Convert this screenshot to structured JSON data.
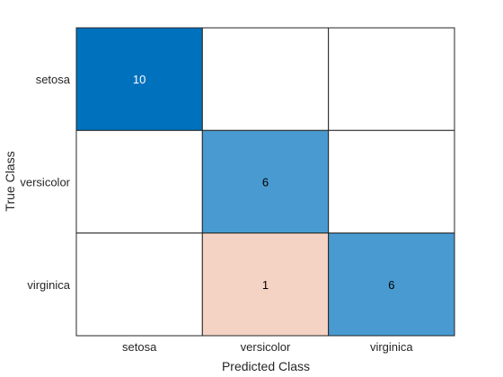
{
  "chart_data": {
    "type": "heatmap",
    "title": "",
    "xlabel": "Predicted Class",
    "ylabel": "True Class",
    "classes": [
      "setosa",
      "versicolor",
      "virginica"
    ],
    "matrix": [
      [
        10,
        0,
        0
      ],
      [
        0,
        6,
        0
      ],
      [
        0,
        1,
        6
      ]
    ],
    "colors": {
      "correct_max": "#0072bd",
      "correct_light": "#d7e9f6",
      "error_max": "#d95319",
      "error_light": "#f8e4dc",
      "empty": "#ffffff",
      "grid": "#262626",
      "text_dark": "#000000",
      "text_light": "#ffffff"
    }
  }
}
